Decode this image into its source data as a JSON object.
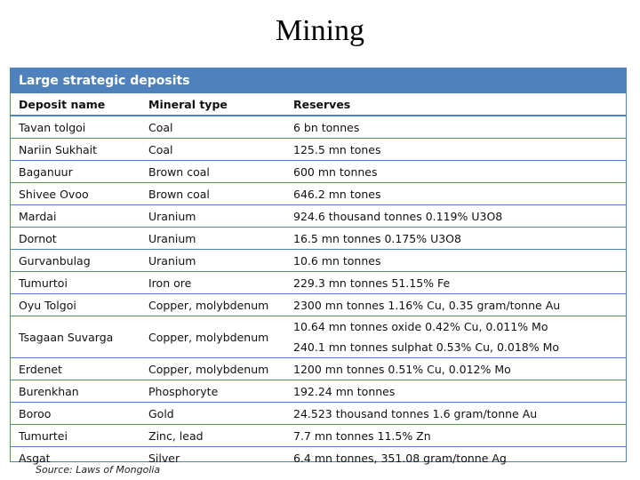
{
  "title": "Mining",
  "table": {
    "caption": "Large strategic deposits",
    "headers": [
      "Deposit name",
      "Mineral type",
      "Reserves"
    ],
    "rows": [
      {
        "name": "Tavan tolgoi",
        "type": "Coal",
        "reserves": [
          "6 bn tonnes"
        ]
      },
      {
        "name": "Nariin Sukhait",
        "type": "Coal",
        "reserves": [
          "125.5 mn tones"
        ]
      },
      {
        "name": "Baganuur",
        "type": "Brown coal",
        "reserves": [
          "600 mn tonnes"
        ]
      },
      {
        "name": "Shivee Ovoo",
        "type": "Brown coal",
        "reserves": [
          "646.2 mn tones"
        ]
      },
      {
        "name": "Mardai",
        "type": "Uranium",
        "reserves": [
          "924.6 thousand tonnes 0.119% U3O8"
        ]
      },
      {
        "name": "Dornot",
        "type": "Uranium",
        "reserves": [
          "16.5 mn tonnes 0.175% U3O8"
        ]
      },
      {
        "name": "Gurvanbulag",
        "type": "Uranium",
        "reserves": [
          "10.6 mn tonnes"
        ]
      },
      {
        "name": "Tumurtoi",
        "type": "Iron ore",
        "reserves": [
          "229.3 mn tonnes 51.15% Fe"
        ]
      },
      {
        "name": "Oyu Tolgoi",
        "type": "Copper, molybdenum",
        "reserves": [
          "2300 mn tonnes 1.16% Cu, 0.35 gram/tonne Au"
        ]
      },
      {
        "name": "Tsagaan Suvarga",
        "type": "Copper, molybdenum",
        "reserves": [
          "10.64 mn tonnes oxide 0.42% Cu, 0.011% Mo",
          "240.1 mn tonnes sulphat 0.53% Cu, 0.018% Mo"
        ]
      },
      {
        "name": "Erdenet",
        "type": "Copper, molybdenum",
        "reserves": [
          "1200 mn tonnes 0.51%  Cu, 0.012% Mo"
        ]
      },
      {
        "name": "Burenkhan",
        "type": "Phosphoryte",
        "reserves": [
          "192.24 mn tonnes"
        ]
      },
      {
        "name": "Boroo",
        "type": "Gold",
        "reserves": [
          "24.523 thousand tonnes 1.6 gram/tonne Au"
        ]
      },
      {
        "name": "Tumurtei",
        "type": "Zinc, lead",
        "reserves": [
          "7.7 mn tonnes 11.5% Zn"
        ]
      },
      {
        "name": "Asgat",
        "type": "Silver",
        "reserves": [
          "6.4 mn tonnes,  351.08 gram/tonne Ag"
        ]
      }
    ]
  },
  "source": "Source: Laws of Mongolia",
  "colors": {
    "accent": "#4f81bd"
  }
}
